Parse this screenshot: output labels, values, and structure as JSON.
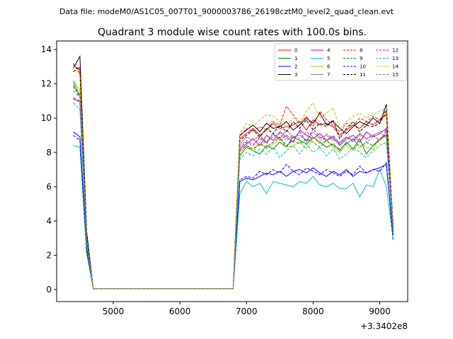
{
  "suptitle": "Data file: modeM0/AS1C05_007T01_9000003786_26198cztM0_level2_quad_clean.evt",
  "title": "Quadrant 3 module wise count rates with 100.0s bins.",
  "offset_label": "+3.3402e8",
  "chart_data": {
    "type": "line",
    "title": "Quadrant 3 module wise count rates with 100.0s bins.",
    "xlabel": "",
    "ylabel": "",
    "x_offset": 334020000,
    "xlim": [
      4150,
      9420
    ],
    "ylim": [
      -0.7,
      14.5
    ],
    "xticks": [
      5000,
      6000,
      7000,
      8000,
      9000
    ],
    "yticks": [
      0,
      2,
      4,
      6,
      8,
      10,
      12,
      14
    ],
    "grid": false,
    "legend": {
      "position": "top-right",
      "columns": 4
    },
    "x": [
      4400,
      4500,
      4600,
      4700,
      6800,
      6900,
      7000,
      7100,
      7200,
      7300,
      7400,
      7500,
      7600,
      7700,
      7800,
      7900,
      8000,
      8100,
      8200,
      8300,
      8400,
      8500,
      8600,
      8700,
      8800,
      8900,
      9000,
      9100,
      9200
    ],
    "series": [
      {
        "name": "0",
        "color": "#ff0000",
        "dash": false,
        "values": [
          13.1,
          12.8,
          3.0,
          0.05,
          0.05,
          8.8,
          9.1,
          9.4,
          9.0,
          9.3,
          9.7,
          9.4,
          9.5,
          9.6,
          9.8,
          9.3,
          9.9,
          9.6,
          9.7,
          9.5,
          9.0,
          9.3,
          9.6,
          9.4,
          9.8,
          9.6,
          9.9,
          10.2,
          3.5
        ]
      },
      {
        "name": "1",
        "color": "#008000",
        "dash": false,
        "values": [
          12.1,
          11.3,
          2.6,
          0.05,
          0.05,
          7.8,
          8.3,
          8.1,
          7.9,
          8.4,
          8.2,
          8.6,
          8.3,
          8.9,
          8.7,
          8.5,
          8.9,
          8.6,
          8.3,
          8.5,
          8.1,
          8.6,
          8.2,
          8.8,
          7.9,
          8.4,
          8.8,
          9.0,
          3.8
        ]
      },
      {
        "name": "2",
        "color": "#0000ff",
        "dash": false,
        "values": [
          9.2,
          8.9,
          2.4,
          0.05,
          0.05,
          6.3,
          6.5,
          6.4,
          6.6,
          6.8,
          6.7,
          6.9,
          6.6,
          6.9,
          7.0,
          6.8,
          7.1,
          6.8,
          6.6,
          6.9,
          6.7,
          7.0,
          6.6,
          6.9,
          6.8,
          7.0,
          7.1,
          7.3,
          3.2
        ]
      },
      {
        "name": "3",
        "color": "#000000",
        "dash": false,
        "values": [
          12.9,
          13.6,
          3.4,
          0.05,
          0.05,
          9.0,
          9.3,
          9.6,
          9.2,
          9.7,
          9.4,
          9.5,
          9.8,
          9.3,
          9.6,
          10.0,
          9.7,
          10.3,
          9.6,
          9.8,
          9.4,
          9.1,
          9.5,
          9.8,
          9.6,
          10.0,
          9.7,
          10.8,
          3.3
        ]
      },
      {
        "name": "4",
        "color": "#bf00bf",
        "dash": false,
        "values": [
          11.1,
          11.0,
          2.8,
          0.05,
          0.05,
          8.2,
          8.5,
          8.8,
          8.4,
          9.0,
          8.7,
          9.2,
          8.9,
          8.6,
          9.3,
          9.0,
          8.8,
          9.1,
          8.7,
          8.9,
          8.4,
          8.8,
          9.0,
          8.6,
          9.2,
          8.9,
          9.1,
          9.4,
          3.6
        ]
      },
      {
        "name": "5",
        "color": "#00bfbf",
        "dash": false,
        "values": [
          8.4,
          8.3,
          2.1,
          0.05,
          0.05,
          5.6,
          6.3,
          6.0,
          6.2,
          5.6,
          6.3,
          6.2,
          6.1,
          6.0,
          6.3,
          6.2,
          6.6,
          6.1,
          6.0,
          6.2,
          5.9,
          5.9,
          6.2,
          5.4,
          6.1,
          6.0,
          7.0,
          6.0,
          3.0
        ]
      },
      {
        "name": "6",
        "color": "#bfbf00",
        "dash": false,
        "values": [
          12.2,
          11.6,
          2.9,
          0.05,
          0.05,
          8.0,
          8.4,
          8.1,
          8.6,
          8.2,
          8.5,
          8.8,
          8.3,
          8.4,
          8.6,
          8.2,
          8.9,
          8.5,
          8.7,
          8.3,
          8.0,
          8.4,
          8.1,
          8.6,
          8.3,
          8.2,
          8.8,
          8.9,
          3.7
        ]
      },
      {
        "name": "7",
        "color": "#808080",
        "dash": false,
        "values": [
          11.8,
          11.4,
          2.7,
          0.05,
          0.05,
          8.5,
          8.9,
          8.7,
          9.0,
          8.6,
          9.1,
          8.8,
          9.3,
          8.9,
          9.0,
          8.7,
          9.2,
          8.8,
          9.0,
          8.7,
          8.6,
          8.9,
          8.7,
          9.1,
          8.8,
          9.0,
          9.2,
          9.3,
          3.5
        ]
      },
      {
        "name": "8",
        "color": "#ff0000",
        "dash": true,
        "values": [
          13.2,
          12.6,
          3.1,
          0.05,
          0.05,
          8.9,
          9.4,
          9.2,
          9.5,
          9.3,
          9.8,
          9.6,
          10.7,
          10.2,
          9.7,
          10.1,
          9.5,
          10.4,
          9.9,
          9.6,
          9.2,
          9.7,
          9.5,
          10.0,
          9.8,
          10.1,
          9.9,
          10.5,
          3.9
        ]
      },
      {
        "name": "9",
        "color": "#008000",
        "dash": true,
        "values": [
          11.9,
          11.2,
          2.8,
          0.05,
          0.05,
          8.1,
          8.4,
          8.2,
          8.5,
          8.3,
          8.6,
          8.9,
          8.4,
          8.7,
          8.5,
          8.8,
          8.6,
          8.3,
          8.7,
          8.4,
          8.2,
          8.5,
          8.8,
          8.3,
          8.6,
          8.4,
          8.7,
          9.1,
          3.4
        ]
      },
      {
        "name": "10",
        "color": "#0000ff",
        "dash": true,
        "values": [
          9.0,
          8.7,
          2.3,
          0.05,
          0.05,
          6.4,
          6.6,
          6.5,
          6.9,
          6.7,
          7.0,
          6.8,
          7.3,
          6.9,
          6.7,
          7.1,
          6.9,
          6.7,
          7.0,
          6.8,
          6.6,
          6.9,
          6.7,
          7.2,
          6.8,
          7.0,
          6.9,
          7.4,
          2.9
        ]
      },
      {
        "name": "11",
        "color": "#000000",
        "dash": true,
        "values": [
          12.7,
          13.0,
          3.2,
          0.05,
          0.05,
          8.7,
          9.0,
          9.3,
          8.9,
          9.4,
          9.1,
          9.6,
          9.2,
          9.8,
          9.4,
          9.9,
          9.3,
          9.7,
          9.5,
          9.9,
          8.8,
          9.4,
          9.8,
          9.2,
          9.6,
          9.5,
          9.7,
          10.4,
          3.6
        ]
      },
      {
        "name": "12",
        "color": "#bf00bf",
        "dash": true,
        "values": [
          11.2,
          10.9,
          2.9,
          0.05,
          0.05,
          8.3,
          8.6,
          8.4,
          8.9,
          8.5,
          9.1,
          8.7,
          9.0,
          8.8,
          9.2,
          8.6,
          9.4,
          8.9,
          8.7,
          9.0,
          8.5,
          8.9,
          8.6,
          9.1,
          8.8,
          9.0,
          8.7,
          9.3,
          3.8
        ]
      },
      {
        "name": "13",
        "color": "#00bfbf",
        "dash": true,
        "values": [
          10.9,
          10.5,
          2.6,
          0.05,
          0.05,
          7.6,
          8.0,
          7.8,
          8.2,
          7.9,
          8.3,
          7.7,
          8.1,
          8.4,
          7.9,
          8.5,
          8.0,
          8.3,
          7.8,
          8.2,
          7.6,
          7.9,
          8.3,
          8.0,
          7.7,
          8.1,
          8.4,
          8.6,
          3.3
        ]
      },
      {
        "name": "14",
        "color": "#bfbf00",
        "dash": true,
        "values": [
          13.0,
          12.5,
          3.0,
          0.05,
          0.05,
          9.1,
          9.7,
          9.5,
          9.9,
          10.2,
          10.1,
          9.8,
          9.6,
          10.0,
          9.7,
          10.4,
          10.9,
          10.0,
          10.3,
          10.6,
          9.4,
          9.8,
          10.1,
          10.3,
          10.0,
          10.2,
          10.4,
          10.6,
          3.9
        ]
      },
      {
        "name": "15",
        "color": "#808080",
        "dash": true,
        "values": [
          11.6,
          11.2,
          2.7,
          0.05,
          0.05,
          8.4,
          8.7,
          8.5,
          8.8,
          8.6,
          8.9,
          9.1,
          8.7,
          9.0,
          8.8,
          9.2,
          8.9,
          8.6,
          9.1,
          8.8,
          8.5,
          8.9,
          8.7,
          9.0,
          8.6,
          8.9,
          9.1,
          9.0,
          3.5
        ]
      }
    ]
  }
}
